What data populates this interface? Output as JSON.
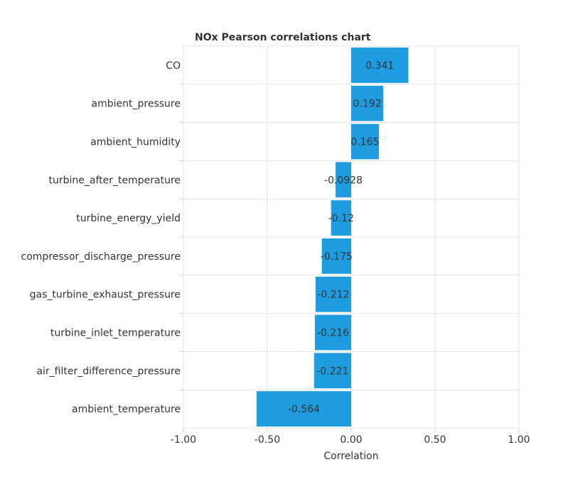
{
  "chart_data": {
    "type": "bar",
    "orientation": "horizontal",
    "title": "NOx Pearson correlations chart",
    "xlabel": "Correlation",
    "ylabel": "",
    "xlim": [
      -1.0,
      1.0
    ],
    "xticks": [
      "-1.00",
      "-0.50",
      "0.00",
      "0.50",
      "1.00"
    ],
    "grid": true,
    "bar_color": "#1f9be0",
    "categories": [
      "CO",
      "ambient_pressure",
      "ambient_humidity",
      "turbine_after_temperature",
      "turbine_energy_yield",
      "compressor_discharge_pressure",
      "gas_turbine_exhaust_pressure",
      "turbine_inlet_temperature",
      "air_filter_difference_pressure",
      "ambient_temperature"
    ],
    "values": [
      0.341,
      0.192,
      0.165,
      -0.0928,
      -0.12,
      -0.175,
      -0.212,
      -0.216,
      -0.221,
      -0.564
    ],
    "value_labels": [
      "0.341",
      "0.192",
      "0.165",
      "-0.0928",
      "-0.12",
      "-0.175",
      "-0.212",
      "-0.216",
      "-0.221",
      "-0.564"
    ]
  }
}
